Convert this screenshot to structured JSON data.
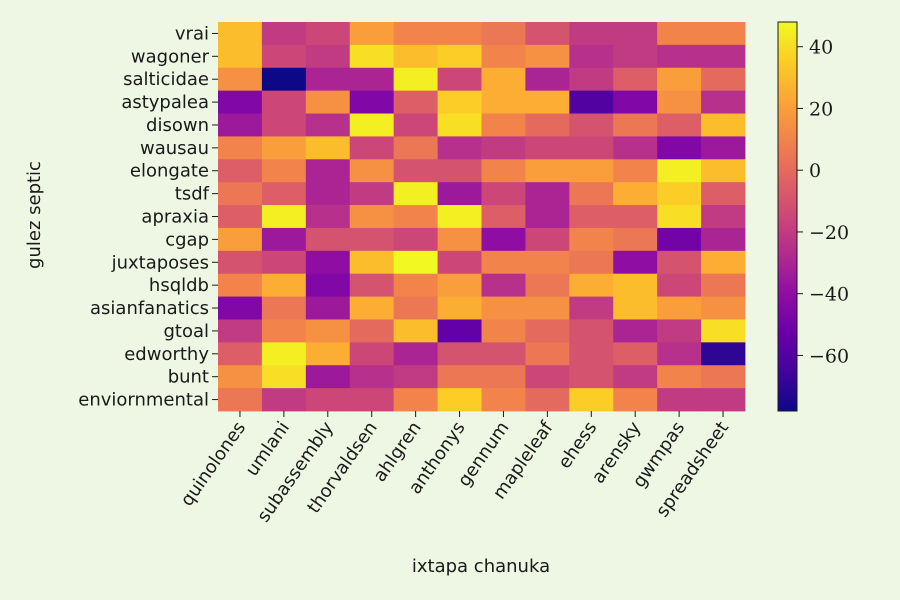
{
  "chart_data": {
    "type": "heatmap",
    "title": "",
    "xlabel": "ixtapa chanuka",
    "ylabel": "gulez septic",
    "x_categories": [
      "quinolones",
      "umlani",
      "subassembly",
      "thorvaldsen",
      "ahlgren",
      "anthonys",
      "gennum",
      "mapleleaf",
      "ehess",
      "arensky",
      "gwmpas",
      "spreadsheet"
    ],
    "y_categories": [
      "vrai",
      "wagoner",
      "salticidae",
      "astypalea",
      "disown",
      "wausau",
      "elongate",
      "tsdf",
      "apraxia",
      "cgap",
      "juxtaposes",
      "hsqldb",
      "asianfanatics",
      "gtoal",
      "edworthy",
      "bunt",
      "enviornmental"
    ],
    "values": [
      [
        30,
        -20,
        -15,
        20,
        10,
        10,
        5,
        -10,
        -20,
        -20,
        10,
        10
      ],
      [
        30,
        -15,
        -20,
        40,
        30,
        35,
        10,
        15,
        -25,
        -20,
        -25,
        -25
      ],
      [
        15,
        -80,
        -30,
        -30,
        45,
        -15,
        25,
        -30,
        -20,
        -5,
        20,
        0
      ],
      [
        -45,
        -15,
        15,
        -45,
        -5,
        35,
        25,
        25,
        -60,
        -45,
        15,
        -25
      ],
      [
        -35,
        -15,
        -25,
        45,
        -15,
        40,
        10,
        0,
        -10,
        5,
        -5,
        30
      ],
      [
        10,
        20,
        30,
        -15,
        5,
        -25,
        -20,
        -15,
        -15,
        -25,
        -45,
        -35
      ],
      [
        -5,
        10,
        -30,
        15,
        -10,
        -10,
        10,
        20,
        20,
        10,
        45,
        30
      ],
      [
        5,
        -5,
        -30,
        -20,
        45,
        -35,
        -15,
        -30,
        5,
        25,
        35,
        -5
      ],
      [
        -5,
        45,
        -25,
        15,
        10,
        45,
        -5,
        -30,
        -5,
        -5,
        40,
        -20
      ],
      [
        20,
        -35,
        -10,
        -10,
        -15,
        15,
        -40,
        -15,
        10,
        5,
        -50,
        -30
      ],
      [
        -10,
        -15,
        -40,
        30,
        48,
        -15,
        10,
        10,
        5,
        -40,
        -10,
        25
      ],
      [
        10,
        25,
        -45,
        -10,
        10,
        20,
        -25,
        5,
        25,
        30,
        -15,
        5
      ],
      [
        -45,
        5,
        -35,
        25,
        5,
        25,
        15,
        15,
        -20,
        30,
        20,
        15
      ],
      [
        -20,
        10,
        15,
        0,
        30,
        -55,
        10,
        0,
        -10,
        -30,
        -20,
        40
      ],
      [
        -5,
        45,
        25,
        -15,
        -30,
        -10,
        -10,
        5,
        -10,
        -5,
        -25,
        -70
      ],
      [
        15,
        40,
        -35,
        -25,
        -20,
        5,
        5,
        -15,
        -10,
        -20,
        10,
        5
      ],
      [
        5,
        -20,
        -15,
        -15,
        10,
        35,
        10,
        0,
        35,
        10,
        -20,
        -20
      ]
    ],
    "colorbar": {
      "range": [
        -78,
        48
      ],
      "ticks": [
        40,
        20,
        0,
        -20,
        -40,
        -60
      ],
      "tick_labels": [
        "40",
        "20",
        "0",
        "−20",
        "−40",
        "−60"
      ],
      "colormap": "plasma"
    },
    "grid": false
  }
}
